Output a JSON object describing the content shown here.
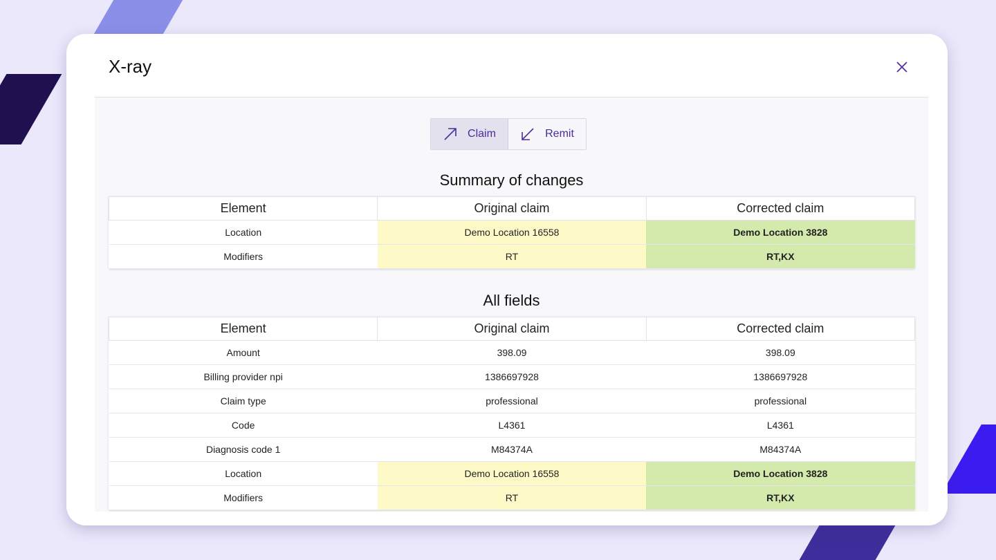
{
  "modal": {
    "title": "X-ray",
    "close_icon": "close-icon"
  },
  "toggle": {
    "claim": "Claim",
    "remit": "Remit",
    "claim_icon": "arrow-up-right-icon",
    "remit_icon": "arrow-down-left-icon",
    "active": "Claim"
  },
  "summary": {
    "title": "Summary of changes",
    "headers": [
      "Element",
      "Original claim",
      "Corrected claim"
    ],
    "rows": [
      {
        "element": "Location",
        "original": "Demo Location 16558",
        "corrected": "Demo Location 3828",
        "changed": true
      },
      {
        "element": "Modifiers",
        "original": "RT",
        "corrected": "RT,KX",
        "changed": true
      }
    ]
  },
  "all_fields": {
    "title": "All fields",
    "headers": [
      "Element",
      "Original claim",
      "Corrected claim"
    ],
    "rows": [
      {
        "element": "Amount",
        "original": "398.09",
        "corrected": "398.09",
        "changed": false
      },
      {
        "element": "Billing provider npi",
        "original": "1386697928",
        "corrected": "1386697928",
        "changed": false
      },
      {
        "element": "Claim type",
        "original": "professional",
        "corrected": "professional",
        "changed": false
      },
      {
        "element": "Code",
        "original": "L4361",
        "corrected": "L4361",
        "changed": false
      },
      {
        "element": "Diagnosis code 1",
        "original": "M84374A",
        "corrected": "M84374A",
        "changed": false
      },
      {
        "element": "Location",
        "original": "Demo Location 16558",
        "corrected": "Demo Location 3828",
        "changed": true
      },
      {
        "element": "Modifiers",
        "original": "RT",
        "corrected": "RT,KX",
        "changed": true
      }
    ]
  },
  "colors": {
    "accent": "#4b2a9c",
    "original_highlight": "#fefac8",
    "corrected_highlight": "#d4eaad"
  }
}
